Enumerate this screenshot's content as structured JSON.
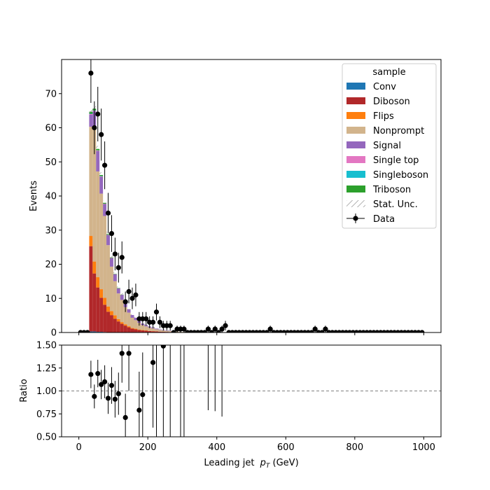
{
  "chart_data": {
    "type": "bar",
    "style": "stacked-step-histogram-with-ratio-panel",
    "xlabel": "Leading jet  p_T (GeV)",
    "xlabel_main": "Leading jet ",
    "xlabel_italic": "p",
    "xlabel_sub": "T",
    "xlabel_unit": " (GeV)",
    "xlim": [
      -50,
      1050
    ],
    "x_ticks": [
      0,
      200,
      400,
      600,
      800,
      1000
    ],
    "bin_width": 10,
    "bin_edges_start": 0,
    "n_bins": 100,
    "main": {
      "ylabel": "Events",
      "ylim": [
        0,
        80
      ],
      "y_ticks": [
        0,
        10,
        20,
        30,
        40,
        50,
        60,
        70
      ]
    },
    "ratio": {
      "ylabel": "Ratio",
      "ylim": [
        0.5,
        1.5
      ],
      "y_ticks": [
        0.5,
        0.75,
        1.0,
        1.25,
        1.5
      ],
      "y_tick_labels": [
        "0.50",
        "0.75",
        "1.00",
        "1.25",
        "1.50"
      ],
      "reference_line": 1.0
    },
    "legend": {
      "title": "sample",
      "placement": "top-right",
      "entries": [
        "Conv",
        "Diboson",
        "Flips",
        "Nonprompt",
        "Signal",
        "Single top",
        "Singleboson",
        "Triboson",
        "Stat. Unc.",
        "Data"
      ]
    },
    "series": [
      {
        "name": "Conv",
        "color": "#1f77b4",
        "first_bin": 3,
        "values": [
          0.3,
          0.3,
          0.2,
          0.2,
          0.15,
          0.1,
          0.1,
          0.05,
          0.05,
          0.05,
          0.03,
          0.03,
          0.02,
          0.02,
          0.02,
          0.01,
          0.01,
          0.01,
          0.01,
          0.01
        ]
      },
      {
        "name": "Diboson",
        "color": "#b1282a",
        "first_bin": 3,
        "values": [
          25,
          17,
          13,
          10,
          8,
          6,
          5,
          4,
          3.2,
          2.5,
          2.0,
          1.5,
          1.1,
          0.9,
          0.7,
          0.6,
          0.5,
          0.4,
          0.35,
          0.3,
          0.25,
          0.2,
          0.18,
          0.15,
          0.12,
          0.1,
          0.08,
          0.06
        ]
      },
      {
        "name": "Flips",
        "color": "#ff7f0e",
        "first_bin": 3,
        "values": [
          3.0,
          3.5,
          3.0,
          2.5,
          2.0,
          1.5,
          1.2,
          1.0,
          0.7,
          0.5,
          0.4,
          0.3,
          0.2,
          0.2,
          0.1,
          0.1,
          0.1,
          0.05,
          0.05,
          0.05
        ]
      },
      {
        "name": "Nonprompt",
        "color": "#d2b48c",
        "first_bin": 3,
        "values": [
          32,
          39,
          31,
          28,
          24,
          18,
          13,
          10,
          7.5,
          6.5,
          5,
          4,
          3,
          2.5,
          2.0,
          1.5,
          1.2,
          1.0,
          0.8,
          0.6,
          0.5,
          0.4,
          0.3,
          0.25,
          0.2,
          0.15,
          0.1,
          0.1
        ]
      },
      {
        "name": "Signal",
        "color": "#9467bd",
        "first_bin": 3,
        "values": [
          3.5,
          5,
          6,
          5,
          3.5,
          3,
          2.5,
          2,
          1.5,
          1.5,
          1.2,
          1.0,
          0.8,
          0.7,
          0.5,
          0.4,
          0.35,
          0.3,
          0.25,
          0.2,
          0.15,
          0.12,
          0.1,
          0.08,
          0.05
        ]
      },
      {
        "name": "Single top",
        "color": "#e377c2",
        "first_bin": 3,
        "values": [
          0.2,
          0.2,
          0.15,
          0.1,
          0.1,
          0.05,
          0.05,
          0.05
        ]
      },
      {
        "name": "Singleboson",
        "color": "#17becf",
        "first_bin": 3,
        "values": [
          0.1,
          0.1,
          0.05,
          0.05
        ]
      },
      {
        "name": "Triboson",
        "color": "#2ca02c",
        "first_bin": 3,
        "values": [
          0.6,
          0.5,
          0.4,
          0.3,
          0.25,
          0.2,
          0.15,
          0.1,
          0.1,
          0.05,
          0.05
        ]
      }
    ],
    "data": {
      "name": "Data",
      "color": "#000000",
      "nonzero": [
        [
          3,
          76
        ],
        [
          4,
          60
        ],
        [
          5,
          64
        ],
        [
          6,
          58
        ],
        [
          7,
          49
        ],
        [
          8,
          35
        ],
        [
          9,
          29
        ],
        [
          10,
          23
        ],
        [
          11,
          19
        ],
        [
          12,
          22
        ],
        [
          13,
          9
        ],
        [
          14,
          12
        ],
        [
          15,
          10
        ],
        [
          16,
          11
        ],
        [
          17,
          4
        ],
        [
          18,
          4
        ],
        [
          19,
          4
        ],
        [
          20,
          3
        ],
        [
          21,
          3
        ],
        [
          22,
          6
        ],
        [
          23,
          3
        ],
        [
          24,
          2
        ],
        [
          25,
          2
        ],
        [
          26,
          2
        ],
        [
          28,
          1
        ],
        [
          29,
          1
        ],
        [
          30,
          1
        ],
        [
          37,
          1
        ],
        [
          39,
          1
        ],
        [
          41,
          1
        ],
        [
          42,
          2
        ],
        [
          55,
          1
        ],
        [
          68,
          1
        ],
        [
          71,
          1
        ]
      ]
    },
    "ratio_points": [
      [
        3,
        1.18
      ],
      [
        4,
        0.94
      ],
      [
        5,
        1.19
      ],
      [
        6,
        1.07
      ],
      [
        7,
        1.1
      ],
      [
        8,
        0.92
      ],
      [
        9,
        1.06
      ],
      [
        10,
        0.91
      ],
      [
        11,
        0.97
      ],
      [
        12,
        1.41
      ],
      [
        13,
        0.71
      ],
      [
        14,
        1.41
      ],
      [
        17,
        0.79
      ],
      [
        18,
        0.96
      ],
      [
        21,
        1.31
      ],
      [
        24,
        1.49
      ]
    ],
    "ratio_error_bars": [
      [
        3,
        1.03,
        1.33
      ],
      [
        4,
        0.81,
        1.07
      ],
      [
        5,
        1.04,
        1.34
      ],
      [
        6,
        0.91,
        1.23
      ],
      [
        7,
        0.92,
        1.28
      ],
      [
        8,
        0.75,
        1.09
      ],
      [
        9,
        0.86,
        1.26
      ],
      [
        10,
        0.71,
        1.11
      ],
      [
        11,
        0.74,
        1.2
      ],
      [
        12,
        1.09,
        1.73
      ],
      [
        13,
        0.45,
        0.97
      ],
      [
        14,
        1.0,
        1.82
      ],
      [
        17,
        0.37,
        1.21
      ],
      [
        18,
        0.5,
        1.42
      ],
      [
        21,
        0.6,
        2.02
      ],
      [
        22,
        0.5,
        1.5
      ],
      [
        24,
        0.5,
        2.0
      ],
      [
        26,
        0.5,
        1.7
      ],
      [
        29,
        0.5,
        2.0
      ],
      [
        30,
        0.5,
        2.0
      ],
      [
        37,
        0.79,
        2.0
      ],
      [
        39,
        0.78,
        2.0
      ],
      [
        41,
        0.72,
        2.0
      ]
    ]
  }
}
